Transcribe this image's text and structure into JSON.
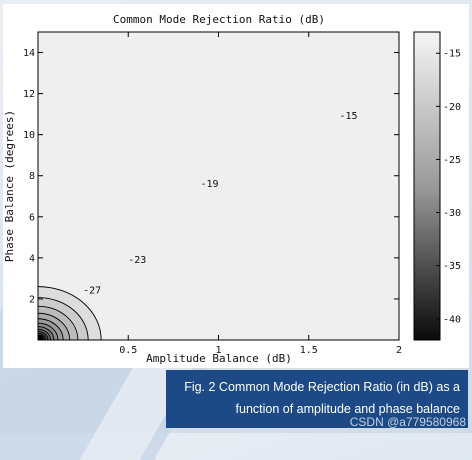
{
  "chart_data": {
    "type": "heatmap",
    "title": "Common Mode Rejection Ratio (dB)",
    "xlabel": "Amplitude Balance (dB)",
    "ylabel": "Phase Balance (degrees)",
    "xlim": [
      0,
      2
    ],
    "ylim": [
      0,
      15
    ],
    "x_ticks": [
      0.5,
      1,
      1.5,
      2
    ],
    "x_tick_labels": [
      "0.5",
      "1",
      "1.5",
      "2"
    ],
    "y_ticks": [
      2,
      4,
      6,
      8,
      10,
      12,
      14
    ],
    "y_tick_labels": [
      "2",
      "4",
      "6",
      "8",
      "10",
      "12",
      "14"
    ],
    "colorbar": {
      "range": [
        -42,
        -13
      ],
      "ticks": [
        -15,
        -20,
        -25,
        -30,
        -35,
        -40
      ],
      "tick_labels": [
        "-15",
        "-20",
        "-25",
        "-30",
        "-35",
        "-40"
      ],
      "colormap": "gray"
    },
    "contour_levels": [
      -15,
      -17,
      -19,
      -21,
      -23,
      -25,
      -27,
      -29,
      -31,
      -33,
      -35,
      -37,
      -39,
      -41
    ],
    "contour_labels": [
      {
        "text": "-15",
        "x": 1.72,
        "y": 10.9
      },
      {
        "text": "-19",
        "x": 0.95,
        "y": 7.6
      },
      {
        "text": "-23",
        "x": 0.55,
        "y": 3.9
      },
      {
        "text": "-27",
        "x": 0.3,
        "y": 2.4
      }
    ],
    "grid": false
  },
  "caption": {
    "line1": "Fig. 2 Common Mode Rejection Ratio (in dB) as a",
    "line2": "function of amplitude and phase balance"
  },
  "watermark": "CSDN @a779580968"
}
